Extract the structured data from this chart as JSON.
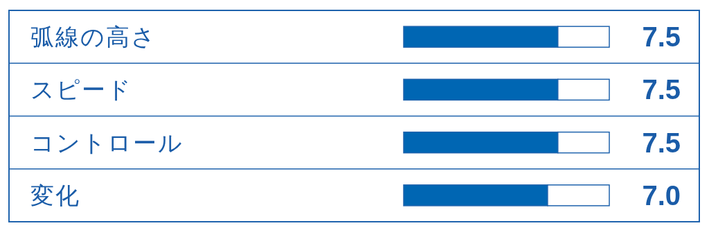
{
  "chart_data": {
    "type": "bar",
    "orientation": "horizontal",
    "stacked": true,
    "categories": [
      "弧線の高さ",
      "スピード",
      "コントロール",
      "変化"
    ],
    "series": [
      {
        "color": "#0066b3",
        "values": [
          7.5,
          7.5,
          7.5,
          7.0
        ],
        "value_labels": [
          "7.5",
          "7.5",
          "7.5",
          "7.0"
        ]
      },
      {
        "color": "#ffffff",
        "values": [
          2.5,
          2.5,
          2.5,
          3.0
        ]
      }
    ],
    "xlim": [
      0,
      10
    ],
    "tick_labels": false
  }
}
